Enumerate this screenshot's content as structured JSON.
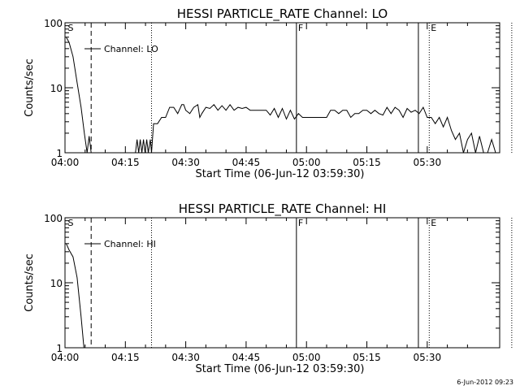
{
  "chart_data": [
    {
      "type": "line",
      "title": "HESSI PARTICLE_RATE Channel: LO",
      "xlabel": "Start Time (06-Jun-12 03:59:30)",
      "ylabel": "Counts/sec",
      "x_ticks": [
        "04:00",
        "04:15",
        "04:30",
        "04:45",
        "05:00",
        "05:15",
        "05:30"
      ],
      "y_ticks": [
        "1",
        "10",
        "100"
      ],
      "y_scale": "log",
      "ylim": [
        1,
        100
      ],
      "xlim_minutes_after_0400": [
        0,
        108
      ],
      "legend": "Channel: LO",
      "markers": [
        {
          "label": "S",
          "minute": 0.3,
          "style": "none"
        },
        {
          "label": "",
          "minute": 6.5,
          "style": "dashed"
        },
        {
          "label": "",
          "minute": 21.5,
          "style": "dotted"
        },
        {
          "label": "F",
          "minute": 57.5,
          "style": "solid"
        },
        {
          "label": "",
          "minute": 87.8,
          "style": "solid"
        },
        {
          "label": "E",
          "minute": 90.5,
          "style": "dotted"
        },
        {
          "label": "",
          "minute": 111,
          "style": "dotted"
        }
      ],
      "series": [
        {
          "points": [
            [
              0.3,
              60
            ],
            [
              1,
              50
            ],
            [
              2,
              30
            ],
            [
              3,
              12
            ],
            [
              4,
              5
            ],
            [
              4.8,
              2
            ],
            [
              5.5,
              1
            ],
            [
              6,
              1.8
            ],
            [
              6.5,
              1
            ],
            [
              17.5,
              1
            ],
            [
              17.9,
              1.6
            ],
            [
              18.3,
              1
            ],
            [
              18.7,
              1.6
            ],
            [
              19.1,
              1
            ],
            [
              19.5,
              1.6
            ],
            [
              19.9,
              1
            ],
            [
              20.3,
              1.6
            ],
            [
              20.7,
              1
            ],
            [
              21.2,
              1.6
            ],
            [
              21.5,
              1
            ],
            [
              22,
              2.8
            ],
            [
              23,
              2.8
            ],
            [
              24,
              3.5
            ],
            [
              25,
              3.5
            ],
            [
              26,
              5
            ],
            [
              27,
              5
            ],
            [
              28,
              4
            ],
            [
              29,
              5.5
            ],
            [
              29.5,
              5.5
            ],
            [
              30,
              4.5
            ],
            [
              31,
              4
            ],
            [
              32,
              5
            ],
            [
              33,
              5.5
            ],
            [
              33.5,
              3.5
            ],
            [
              34,
              4
            ],
            [
              35,
              5
            ],
            [
              36,
              4.8
            ],
            [
              37,
              5.5
            ],
            [
              38,
              4.5
            ],
            [
              39,
              5.3
            ],
            [
              40,
              4.5
            ],
            [
              41,
              5.5
            ],
            [
              42,
              4.5
            ],
            [
              43,
              5
            ],
            [
              44,
              4.8
            ],
            [
              45,
              5
            ],
            [
              46,
              4.5
            ],
            [
              47,
              4.5
            ],
            [
              48,
              4.5
            ],
            [
              49,
              4.5
            ],
            [
              50,
              4.5
            ],
            [
              51,
              3.8
            ],
            [
              52,
              4.8
            ],
            [
              53,
              3.5
            ],
            [
              54,
              4.8
            ],
            [
              55,
              3.3
            ],
            [
              56,
              4.5
            ],
            [
              57,
              3.3
            ],
            [
              58,
              4
            ],
            [
              59,
              3.5
            ],
            [
              60,
              3.5
            ],
            [
              61,
              3.5
            ],
            [
              62,
              3.5
            ],
            [
              63,
              3.5
            ],
            [
              64,
              3.5
            ],
            [
              65,
              3.5
            ],
            [
              66,
              4.5
            ],
            [
              67,
              4.5
            ],
            [
              68,
              4
            ],
            [
              69,
              4.5
            ],
            [
              70,
              4.5
            ],
            [
              71,
              3.5
            ],
            [
              72,
              4
            ],
            [
              73,
              4
            ],
            [
              74,
              4.5
            ],
            [
              75,
              4.5
            ],
            [
              76,
              4
            ],
            [
              77,
              4.5
            ],
            [
              78,
              4
            ],
            [
              79,
              3.8
            ],
            [
              80,
              5
            ],
            [
              81,
              4
            ],
            [
              82,
              5
            ],
            [
              83,
              4.5
            ],
            [
              84,
              3.5
            ],
            [
              85,
              4.8
            ],
            [
              86,
              4.2
            ],
            [
              87,
              4.5
            ],
            [
              88,
              4
            ],
            [
              89,
              5
            ],
            [
              90,
              3.5
            ],
            [
              91,
              3.5
            ],
            [
              92,
              2.8
            ],
            [
              93,
              3.5
            ],
            [
              94,
              2.5
            ],
            [
              95,
              3.5
            ],
            [
              96,
              2.2
            ],
            [
              97,
              1.6
            ],
            [
              98,
              2
            ],
            [
              99,
              1
            ],
            [
              100,
              1.6
            ],
            [
              101,
              2
            ],
            [
              102,
              1
            ],
            [
              103,
              1.8
            ],
            [
              104,
              1
            ],
            [
              105,
              1
            ],
            [
              106,
              1.6
            ],
            [
              107,
              1
            ]
          ]
        }
      ]
    },
    {
      "type": "line",
      "title": "HESSI PARTICLE_RATE Channel: HI",
      "xlabel": "Start Time (06-Jun-12 03:59:30)",
      "ylabel": "Counts/sec",
      "x_ticks": [
        "04:00",
        "04:15",
        "04:30",
        "04:45",
        "05:00",
        "05:15",
        "05:30"
      ],
      "y_ticks": [
        "1",
        "10",
        "100"
      ],
      "y_scale": "log",
      "ylim": [
        1,
        100
      ],
      "xlim_minutes_after_0400": [
        0,
        108
      ],
      "legend": "Channel: HI",
      "markers": [
        {
          "label": "S",
          "minute": 0.3,
          "style": "none"
        },
        {
          "label": "",
          "minute": 6.5,
          "style": "dashed"
        },
        {
          "label": "",
          "minute": 21.5,
          "style": "dotted"
        },
        {
          "label": "F",
          "minute": 57.5,
          "style": "solid"
        },
        {
          "label": "",
          "minute": 87.8,
          "style": "solid"
        },
        {
          "label": "E",
          "minute": 90.5,
          "style": "dotted"
        },
        {
          "label": "",
          "minute": 111,
          "style": "dotted"
        }
      ],
      "series": [
        {
          "points": [
            [
              0.3,
              40
            ],
            [
              1,
              32
            ],
            [
              2,
              25
            ],
            [
              3,
              12
            ],
            [
              4,
              3
            ],
            [
              4.7,
              1
            ]
          ]
        }
      ]
    }
  ],
  "footer": "6-Jun-2012 09:23"
}
